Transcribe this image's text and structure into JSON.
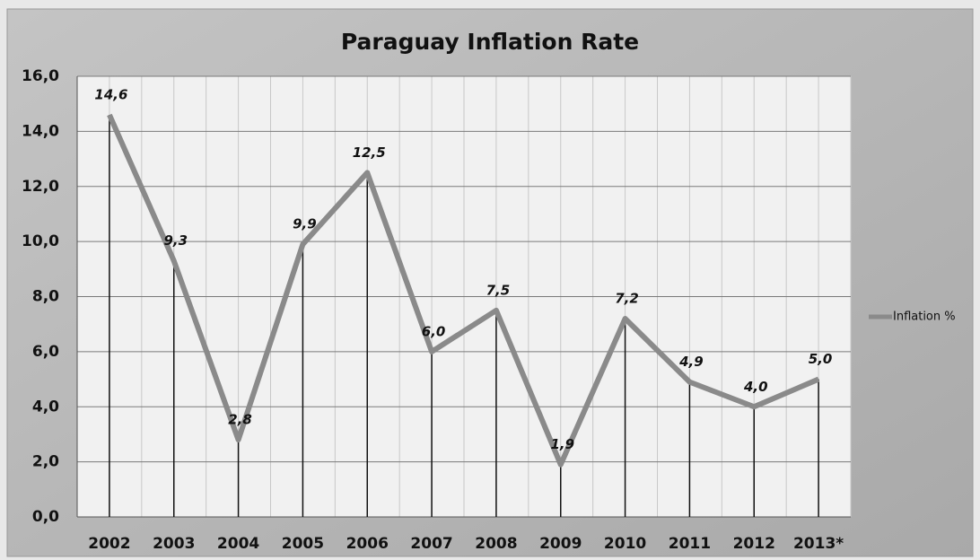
{
  "chart_data": {
    "type": "line",
    "title": "Paraguay Inflation Rate",
    "categories": [
      "2002",
      "2003",
      "2004",
      "2005",
      "2006",
      "2007",
      "2008",
      "2009",
      "2010",
      "2011",
      "2012",
      "2013*"
    ],
    "series": [
      {
        "name": "Inflation %",
        "color": "#8a8a8a",
        "values": [
          14.6,
          9.3,
          2.8,
          9.9,
          12.5,
          6.0,
          7.5,
          1.9,
          7.2,
          4.9,
          4.0,
          5.0
        ],
        "value_labels": [
          "14,6",
          "9,3",
          "2,8",
          "9,9",
          "12,5",
          "6,0",
          "7,5",
          "1,9",
          "7,2",
          "4,9",
          "4,0",
          "5,0"
        ]
      }
    ],
    "ylim": [
      0,
      16
    ],
    "yticks": [
      {
        "value": 0,
        "label": "0,0"
      },
      {
        "value": 2,
        "label": "2,0"
      },
      {
        "value": 4,
        "label": "4,0"
      },
      {
        "value": 6,
        "label": "6,0"
      },
      {
        "value": 8,
        "label": "8,0"
      },
      {
        "value": 10,
        "label": "10,0"
      },
      {
        "value": 12,
        "label": "12,0"
      },
      {
        "value": 14,
        "label": "14,0"
      },
      {
        "value": 16,
        "label": "16,0"
      }
    ],
    "grid": true,
    "legend": "right"
  }
}
